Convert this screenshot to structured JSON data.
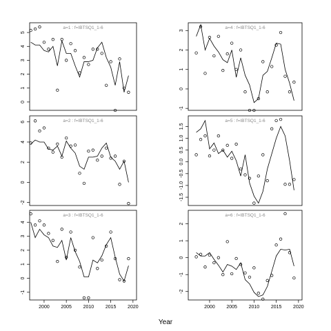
{
  "xlabel": "Year",
  "chart_data": [
    {
      "type": "line",
      "title": "a=1 :  f=IBTSQ1_1-6",
      "x": [
        1997,
        1998,
        1999,
        2000,
        2001,
        2002,
        2003,
        2004,
        2005,
        2006,
        2007,
        2008,
        2009,
        2010,
        2011,
        2012,
        2013,
        2014,
        2015,
        2016,
        2017,
        2018,
        2019
      ],
      "series": [
        {
          "style": "points",
          "color": "#000000",
          "values": [
            5.15,
            5.25,
            5.4,
            4.3,
            3.8,
            4.5,
            0.85,
            4.5,
            3.0,
            4.2,
            3.7,
            2.1,
            3.2,
            2.7,
            3.8,
            3.8,
            3.5,
            1.2,
            2.9,
            -0.6,
            3.1,
            1.0,
            0.7
          ]
        },
        {
          "style": "line",
          "color": "#000000",
          "values": [
            4.3,
            4.1,
            4.1,
            3.7,
            3.6,
            4.0,
            2.6,
            4.4,
            3.5,
            3.5,
            2.6,
            1.8,
            2.9,
            2.9,
            3.0,
            3.9,
            4.3,
            3.2,
            2.5,
            1.2,
            2.9,
            0.7,
            1.9
          ]
        }
      ],
      "xlim": [
        1996.75,
        2020.8
      ],
      "ylim": [
        -0.6,
        5.7
      ],
      "yticks": [
        0,
        1,
        2,
        3,
        4,
        5
      ]
    },
    {
      "type": "line",
      "title": "a=4 :  f=IBTSQ1_1-6",
      "x": [
        1997,
        1998,
        1999,
        2000,
        2001,
        2002,
        2003,
        2004,
        2005,
        2006,
        2007,
        2008,
        2009,
        2010,
        2011,
        2012,
        2013,
        2014,
        2015,
        2016,
        2017,
        2018,
        2019
      ],
      "series": [
        {
          "style": "points",
          "color": "#000000",
          "values": [
            1.85,
            3.2,
            0.8,
            2.65,
            1.7,
            2.7,
            0.95,
            1.8,
            2.35,
            1.0,
            2.0,
            -0.15,
            -1.1,
            -1.1,
            -0.5,
            1.4,
            -0.15,
            1.15,
            2.25,
            2.9,
            0.65,
            -0.15,
            0.35
          ]
        },
        {
          "style": "line",
          "color": "#000000",
          "values": [
            2.7,
            3.3,
            2.0,
            2.6,
            2.2,
            1.9,
            1.5,
            1.35,
            2.0,
            0.6,
            1.6,
            0.7,
            0.2,
            -0.7,
            -0.5,
            0.7,
            0.9,
            1.6,
            2.35,
            2.3,
            1.0,
            0.3,
            -0.6
          ]
        }
      ],
      "xlim": [
        1995.2,
        2020.8
      ],
      "ylim": [
        -1.1,
        3.4
      ],
      "yticks": [
        -1,
        0,
        1,
        2,
        3
      ]
    },
    {
      "type": "line",
      "title": "a=2 :  f=IBTSQ1_1-6",
      "x": [
        1997,
        1998,
        1999,
        2000,
        2001,
        2002,
        2003,
        2004,
        2005,
        2006,
        2007,
        2008,
        2009,
        2010,
        2011,
        2012,
        2013,
        2014,
        2015,
        2016,
        2017,
        2018,
        2019
      ],
      "series": [
        {
          "style": "points",
          "color": "#000000",
          "values": [
            3.9,
            6.1,
            5.1,
            5.4,
            3.4,
            3.0,
            3.8,
            2.5,
            4.4,
            3.6,
            3.7,
            0.9,
            -0.1,
            3.1,
            3.2,
            2.2,
            2.6,
            3.4,
            2.4,
            2.6,
            -0.2,
            2.1,
            -2.1
          ]
        },
        {
          "style": "line",
          "color": "#000000",
          "values": [
            3.8,
            4.2,
            4.0,
            4.0,
            3.3,
            3.2,
            3.6,
            2.6,
            4.1,
            3.4,
            2.9,
            1.6,
            1.3,
            2.5,
            2.5,
            2.6,
            3.4,
            3.9,
            2.5,
            2.1,
            1.3,
            2.1,
            0.0
          ]
        }
      ],
      "xlim": [
        1996.75,
        2020.8
      ],
      "ylim": [
        -2.3,
        6.6
      ],
      "yticks": [
        -2,
        0,
        2,
        4,
        6
      ]
    },
    {
      "type": "line",
      "title": "a=5 :  f=IBTSQ1_1-6",
      "x": [
        1997,
        1998,
        1999,
        2000,
        2001,
        2002,
        2003,
        2004,
        2005,
        2006,
        2007,
        2008,
        2009,
        2010,
        2011,
        2012,
        2013,
        2014,
        2015,
        2016,
        2017,
        2018,
        2019
      ],
      "series": [
        {
          "style": "points",
          "color": "#000000",
          "values": [
            0.3,
            0.95,
            1.1,
            0.25,
            0.5,
            1.1,
            0.5,
            0.7,
            0.15,
            0.75,
            -0.3,
            -0.55,
            -0.7,
            -1.75,
            -0.6,
            0.3,
            -0.8,
            1.4,
            1.75,
            1.8,
            -0.95,
            -0.95,
            -0.75
          ]
        },
        {
          "style": "line",
          "color": "#000000",
          "values": [
            1.25,
            1.4,
            1.75,
            0.55,
            0.8,
            0.35,
            0.5,
            0.2,
            0.45,
            0.05,
            -0.6,
            0.3,
            -0.9,
            -1.45,
            -1.75,
            -1.25,
            -0.3,
            0.35,
            1.0,
            1.5,
            1.1,
            0.05,
            -1.2
          ]
        }
      ],
      "xlim": [
        1995.2,
        2020.8
      ],
      "ylim": [
        -1.85,
        1.95
      ],
      "yticks": [
        -1.5,
        {
          "value": -1,
          "label": "-1.0"
        },
        -0.5,
        {
          "value": 0,
          "label": "0.0"
        },
        0.5,
        {
          "value": 1,
          "label": "1.0"
        },
        1.5
      ]
    },
    {
      "type": "line",
      "title": "a=3 :  f=IBTSQ1_1-6",
      "x": [
        1997,
        1998,
        1999,
        2000,
        2001,
        2002,
        2003,
        2004,
        2005,
        2006,
        2007,
        2008,
        2009,
        2010,
        2011,
        2012,
        2013,
        2014,
        2015,
        2016,
        2017,
        2018,
        2019
      ],
      "series": [
        {
          "style": "points",
          "color": "#000000",
          "values": [
            4.6,
            3.8,
            4.1,
            3.8,
            3.2,
            2.7,
            1.2,
            3.5,
            1.5,
            3.3,
            2.0,
            0.8,
            -1.4,
            -1.4,
            2.9,
            0.7,
            1.3,
            2.3,
            3.3,
            1.4,
            -0.1,
            -0.2,
            1.4
          ]
        },
        {
          "style": "line",
          "color": "#000000",
          "values": [
            4.0,
            2.9,
            3.5,
            3.1,
            2.9,
            2.3,
            2.2,
            2.7,
            1.3,
            2.9,
            1.9,
            1.2,
            0.1,
            0.1,
            1.3,
            1.1,
            1.6,
            2.4,
            2.9,
            1.5,
            0.3,
            -0.2,
            0.9
          ]
        }
      ],
      "xlim": [
        1996.75,
        2020.8
      ],
      "ylim": [
        -1.55,
        4.85
      ],
      "yticks": [
        -1,
        0,
        1,
        2,
        3,
        4
      ],
      "xticks": [
        2000,
        2005,
        2010,
        2015,
        2020
      ]
    },
    {
      "type": "line",
      "title": "a=6 :  f=IBTSQ1_1-6",
      "x": [
        1997,
        1998,
        1999,
        2000,
        2001,
        2002,
        2003,
        2004,
        2005,
        2006,
        2007,
        2008,
        2009,
        2010,
        2011,
        2012,
        2013,
        2014,
        2015,
        2016,
        2017,
        2018,
        2019
      ],
      "series": [
        {
          "style": "points",
          "color": "#000000",
          "values": [
            0.05,
            0.2,
            -0.55,
            0.15,
            -0.3,
            0.0,
            -1.0,
            0.95,
            -0.95,
            -0.05,
            -0.4,
            -0.9,
            -1.15,
            -0.6,
            -2.1,
            -2.45,
            -1.35,
            -1.05,
            0.75,
            1.1,
            2.6,
            0.3,
            -1.2
          ]
        },
        {
          "style": "line",
          "color": "#000000",
          "values": [
            0.3,
            0.1,
            0.1,
            0.3,
            -0.1,
            -0.45,
            -0.85,
            -0.4,
            -0.5,
            -0.7,
            -0.3,
            -1.3,
            -1.55,
            -2.05,
            -2.3,
            -2.2,
            -1.7,
            -0.8,
            0.1,
            0.5,
            0.45,
            0.5,
            -0.5
          ]
        }
      ],
      "xlim": [
        1995.2,
        2020.8
      ],
      "ylim": [
        -2.5,
        2.8
      ],
      "yticks": [
        -2,
        -1,
        0,
        1,
        2
      ],
      "xticks": [
        2000,
        2005,
        2010,
        2015,
        2020
      ]
    }
  ]
}
